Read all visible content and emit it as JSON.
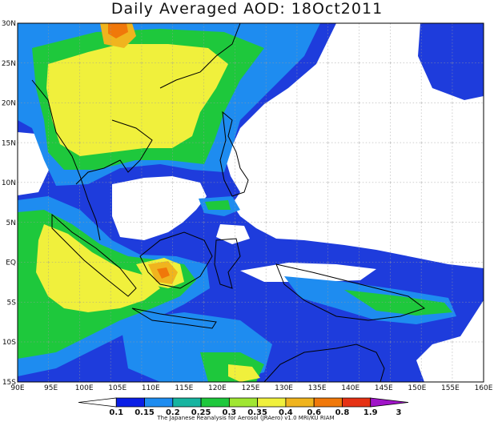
{
  "title": "Daily Averaged AOD: 18Oct2011",
  "credit": "The Japanese Reanalysis for Aerosol (JRAero) v1.0 MRI/KU RIAM",
  "lon_labels": [
    "90E",
    "95E",
    "100E",
    "105E",
    "110E",
    "115E",
    "120E",
    "125E",
    "130E",
    "135E",
    "140E",
    "145E",
    "150E",
    "155E",
    "160E"
  ],
  "lat_labels": [
    "30N",
    "25N",
    "20N",
    "15N",
    "10N",
    "5N",
    "EQ",
    "5S",
    "10S",
    "15S"
  ],
  "colorbar": {
    "labels": [
      "0.1",
      "0.15",
      "0.2",
      "0.25",
      "0.3",
      "0.35",
      "0.4",
      "0.6",
      "0.8",
      "1.9",
      "3"
    ],
    "colors": [
      "#ffffff",
      "#0a1ee6",
      "#1e8cf0",
      "#17b4a0",
      "#1ec83c",
      "#a0e632",
      "#f0f03c",
      "#f0b41e",
      "#f0780a",
      "#e63214",
      "#a014c8"
    ]
  }
}
